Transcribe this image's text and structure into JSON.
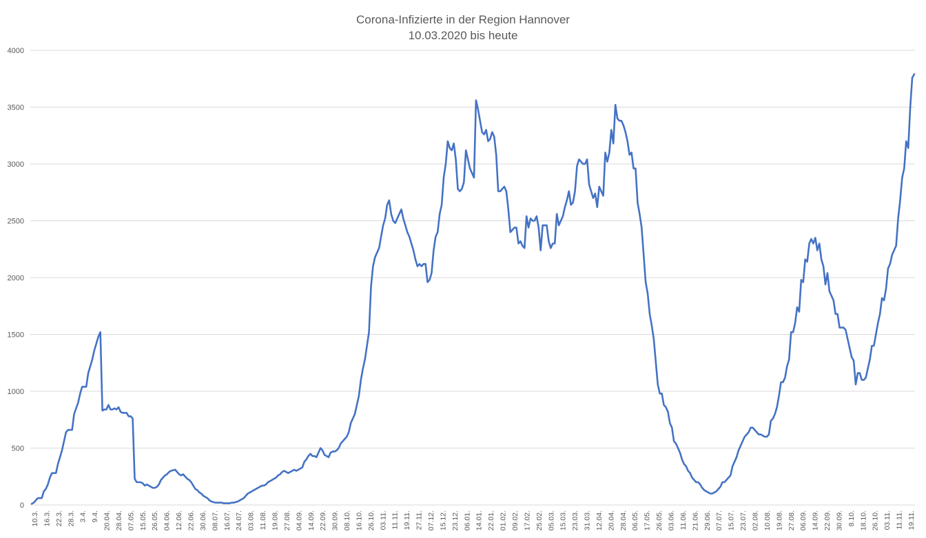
{
  "chart_data": {
    "type": "line",
    "title": "Corona-Infizierte in der Region Hannover",
    "subtitle": "10.03.2020 bis heute",
    "xlabel": "",
    "ylabel": "",
    "ylim": [
      0,
      4000
    ],
    "yticks": [
      0,
      500,
      1000,
      1500,
      2000,
      2500,
      3000,
      3500,
      4000
    ],
    "grid": true,
    "legend": "none",
    "line_color": "#4472C4",
    "xticks": [
      "10.3.",
      "16.3.",
      "22.3.",
      "28.3.",
      "3.4.",
      "9.4.",
      "20.04.",
      "28.04.",
      "07.05.",
      "15.05.",
      "26.05.",
      "04.06.",
      "12.06.",
      "22.06.",
      "30.06.",
      "08.07.",
      "16.07.",
      "24.07.",
      "03.08.",
      "11.08.",
      "19.08.",
      "27.08.",
      "04.09.",
      "14.09.",
      "22.09.",
      "30.09.",
      "08.10.",
      "16.10.",
      "26.10.",
      "03.11.",
      "11.11.",
      "19.11.",
      "27.11.",
      "07.12.",
      "15.12.",
      "23.12.",
      "06.01.",
      "14.01.",
      "22.01.",
      "01.02.",
      "09.02.",
      "17.02.",
      "25.02.",
      "05.03.",
      "15.03.",
      "23.03.",
      "31.03.",
      "12.04.",
      "20.04.",
      "28.04.",
      "06.05.",
      "17.05.",
      "26.05.",
      "03.06.",
      "11.06.",
      "21.06.",
      "29.06.",
      "07.07.",
      "15.07.",
      "23.07.",
      "02.08.",
      "10.08.",
      "19.08.",
      "27.08.",
      "06.09.",
      "14.09.",
      "22.09.",
      "30.09.",
      "8.10.",
      "18.10.",
      "26.10.",
      "03.11.",
      "11.11.",
      "19.11."
    ],
    "values": [
      10,
      20,
      40,
      60,
      60,
      60,
      120,
      140,
      180,
      240,
      280,
      280,
      280,
      360,
      420,
      480,
      560,
      640,
      660,
      660,
      660,
      800,
      850,
      900,
      980,
      1040,
      1040,
      1040,
      1160,
      1220,
      1280,
      1360,
      1420,
      1480,
      1520,
      830,
      840,
      840,
      880,
      840,
      840,
      850,
      840,
      860,
      820,
      810,
      810,
      810,
      780,
      780,
      760,
      230,
      200,
      200,
      200,
      190,
      170,
      180,
      170,
      160,
      150,
      150,
      160,
      180,
      220,
      240,
      260,
      270,
      290,
      300,
      305,
      310,
      290,
      270,
      260,
      270,
      250,
      230,
      220,
      200,
      170,
      140,
      130,
      110,
      100,
      80,
      70,
      60,
      40,
      30,
      25,
      20,
      20,
      20,
      20,
      15,
      15,
      15,
      15,
      20,
      20,
      25,
      30,
      40,
      50,
      60,
      80,
      100,
      110,
      120,
      130,
      140,
      150,
      160,
      170,
      170,
      180,
      200,
      210,
      220,
      230,
      240,
      260,
      270,
      290,
      300,
      290,
      280,
      290,
      300,
      310,
      300,
      310,
      320,
      330,
      380,
      400,
      430,
      450,
      430,
      430,
      420,
      460,
      500,
      480,
      440,
      430,
      420,
      460,
      470,
      470,
      480,
      500,
      540,
      560,
      580,
      600,
      640,
      720,
      760,
      800,
      880,
      960,
      1100,
      1200,
      1280,
      1400,
      1520,
      1920,
      2100,
      2180,
      2220,
      2260,
      2360,
      2460,
      2520,
      2640,
      2680,
      2560,
      2500,
      2480,
      2520,
      2560,
      2600,
      2520,
      2460,
      2400,
      2360,
      2300,
      2240,
      2160,
      2100,
      2120,
      2100,
      2120,
      2120,
      1960,
      1980,
      2040,
      2240,
      2360,
      2400,
      2560,
      2640,
      2880,
      3000,
      3200,
      3140,
      3120,
      3180,
      3040,
      2780,
      2760,
      2780,
      2840,
      3120,
      3040,
      2960,
      2920,
      2880,
      3560,
      3480,
      3380,
      3280,
      3260,
      3300,
      3200,
      3220,
      3280,
      3240,
      3080,
      2760,
      2760,
      2780,
      2800,
      2760,
      2600,
      2400,
      2420,
      2440,
      2440,
      2300,
      2320,
      2280,
      2260,
      2540,
      2440,
      2520,
      2500,
      2500,
      2540,
      2440,
      2240,
      2460,
      2460,
      2460,
      2320,
      2260,
      2300,
      2300,
      2560,
      2460,
      2500,
      2540,
      2620,
      2680,
      2760,
      2640,
      2660,
      2760,
      2980,
      3040,
      3020,
      3000,
      3000,
      3040,
      2820,
      2760,
      2700,
      2740,
      2620,
      2800,
      2760,
      2720,
      3100,
      3020,
      3100,
      3300,
      3180,
      3520,
      3400,
      3380,
      3380,
      3340,
      3280,
      3200,
      3080,
      3100,
      2960,
      2960,
      2660,
      2560,
      2440,
      2200,
      1960,
      1860,
      1680,
      1580,
      1460,
      1260,
      1060,
      980,
      980,
      880,
      860,
      820,
      720,
      680,
      560,
      540,
      500,
      460,
      400,
      360,
      340,
      300,
      280,
      240,
      220,
      200,
      200,
      180,
      150,
      130,
      120,
      110,
      100,
      100,
      110,
      120,
      140,
      160,
      200,
      200,
      220,
      240,
      260,
      340,
      380,
      420,
      480,
      520,
      560,
      600,
      620,
      640,
      680,
      680,
      660,
      640,
      620,
      620,
      610,
      600,
      600,
      620,
      740,
      760,
      800,
      860,
      960,
      1080,
      1080,
      1120,
      1220,
      1280,
      1520,
      1520,
      1600,
      1740,
      1700,
      1980,
      1960,
      2160,
      2140,
      2300,
      2340,
      2300,
      2350,
      2240,
      2300,
      2160,
      2100,
      1940,
      2040,
      1880,
      1840,
      1800,
      1680,
      1680,
      1560,
      1560,
      1560,
      1540,
      1460,
      1380,
      1300,
      1270,
      1060,
      1160,
      1160,
      1100,
      1100,
      1120,
      1200,
      1280,
      1400,
      1400,
      1500,
      1600,
      1680,
      1820,
      1800,
      1900,
      2080,
      2120,
      2200,
      2240,
      2280,
      2520,
      2680,
      2880,
      2960,
      3200,
      3140,
      3500,
      3760,
      3790
    ]
  }
}
